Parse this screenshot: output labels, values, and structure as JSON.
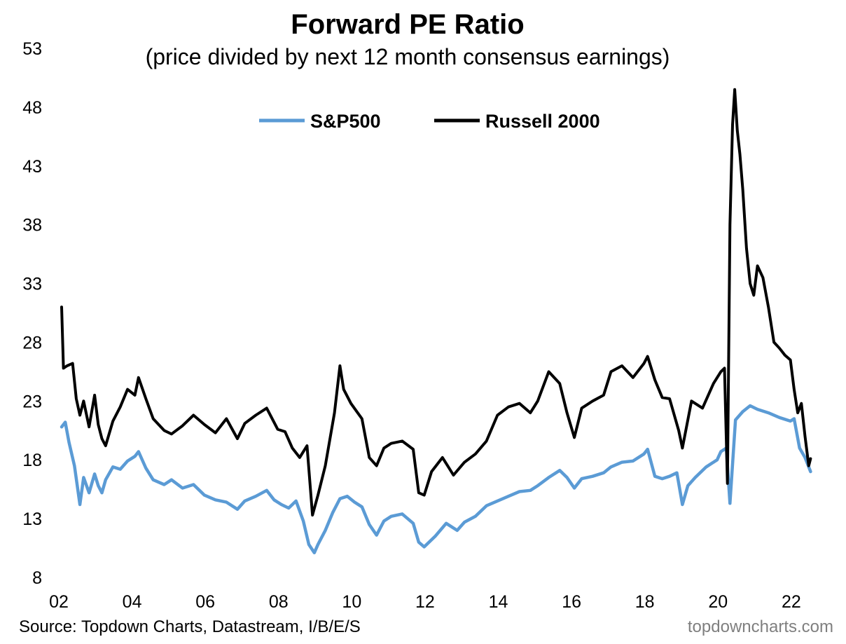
{
  "colors": {
    "sp500": "#5b9bd5",
    "russell": "#000000"
  },
  "source": "Source: Topdown Charts, Datastream, I/B/E/S",
  "credit": "topdowncharts.com",
  "chart_data": {
    "type": "line",
    "title": "Forward PE Ratio",
    "subtitle": "(price divided by next 12 month consensus earnings)",
    "xlabel": "",
    "ylabel": "",
    "xlim": [
      2002.0,
      2022.5
    ],
    "ylim": [
      8,
      53
    ],
    "x_ticks": [
      2002,
      2004,
      2006,
      2008,
      2010,
      2012,
      2014,
      2016,
      2018,
      2020,
      2022
    ],
    "x_tick_labels": [
      "02",
      "04",
      "06",
      "08",
      "10",
      "12",
      "14",
      "16",
      "18",
      "20",
      "22"
    ],
    "y_ticks": [
      8,
      13,
      18,
      23,
      28,
      33,
      38,
      43,
      48,
      53
    ],
    "y_tick_labels": [
      "8",
      "13",
      "18",
      "23",
      "28",
      "33",
      "38",
      "43",
      "48",
      "53"
    ],
    "grid": false,
    "legend": "top-center",
    "series": [
      {
        "name": "S&P500",
        "color": "#5b9bd5",
        "x": [
          2002.0,
          2002.1,
          2002.2,
          2002.35,
          2002.5,
          2002.6,
          2002.75,
          2002.9,
          2003.0,
          2003.1,
          2003.2,
          2003.4,
          2003.6,
          2003.8,
          2004.0,
          2004.1,
          2004.3,
          2004.5,
          2004.8,
          2005.0,
          2005.3,
          2005.6,
          2005.9,
          2006.2,
          2006.5,
          2006.8,
          2007.0,
          2007.3,
          2007.6,
          2007.8,
          2008.0,
          2008.2,
          2008.4,
          2008.6,
          2008.75,
          2008.9,
          2009.0,
          2009.2,
          2009.4,
          2009.6,
          2009.8,
          2010.0,
          2010.2,
          2010.4,
          2010.6,
          2010.8,
          2011.0,
          2011.3,
          2011.6,
          2011.75,
          2011.9,
          2012.2,
          2012.5,
          2012.8,
          2013.0,
          2013.3,
          2013.6,
          2013.9,
          2014.2,
          2014.5,
          2014.8,
          2015.0,
          2015.3,
          2015.6,
          2015.8,
          2016.0,
          2016.2,
          2016.5,
          2016.8,
          2017.0,
          2017.3,
          2017.6,
          2017.9,
          2018.0,
          2018.2,
          2018.4,
          2018.6,
          2018.8,
          2018.95,
          2019.1,
          2019.3,
          2019.6,
          2019.9,
          2020.0,
          2020.15,
          2020.25,
          2020.4,
          2020.6,
          2020.8,
          2021.0,
          2021.3,
          2021.6,
          2021.9,
          2022.0,
          2022.15,
          2022.3,
          2022.45
        ],
        "values": [
          20.8,
          21.2,
          19.5,
          17.5,
          14.2,
          16.5,
          15.2,
          16.8,
          15.8,
          15.2,
          16.3,
          17.4,
          17.2,
          17.9,
          18.3,
          18.7,
          17.3,
          16.3,
          15.9,
          16.3,
          15.6,
          15.9,
          15.0,
          14.6,
          14.4,
          13.8,
          14.5,
          14.9,
          15.4,
          14.6,
          14.2,
          13.9,
          14.5,
          12.8,
          10.8,
          10.1,
          10.8,
          12.0,
          13.5,
          14.7,
          14.9,
          14.4,
          14.0,
          12.5,
          11.6,
          12.8,
          13.2,
          13.4,
          12.6,
          11.0,
          10.6,
          11.5,
          12.6,
          12.0,
          12.7,
          13.2,
          14.1,
          14.5,
          14.9,
          15.3,
          15.4,
          15.8,
          16.5,
          17.1,
          16.5,
          15.6,
          16.4,
          16.6,
          16.9,
          17.4,
          17.8,
          17.9,
          18.5,
          18.9,
          16.6,
          16.4,
          16.6,
          16.9,
          14.2,
          15.8,
          16.5,
          17.4,
          18.0,
          18.7,
          19.0,
          14.3,
          21.4,
          22.1,
          22.6,
          22.3,
          22.0,
          21.6,
          21.3,
          21.5,
          19.0,
          18.2,
          17.0
        ]
      },
      {
        "name": "Russell 2000",
        "color": "#000000",
        "x": [
          2002.0,
          2002.05,
          2002.15,
          2002.3,
          2002.4,
          2002.5,
          2002.6,
          2002.75,
          2002.9,
          2003.0,
          2003.1,
          2003.2,
          2003.4,
          2003.6,
          2003.8,
          2004.0,
          2004.1,
          2004.3,
          2004.5,
          2004.8,
          2005.0,
          2005.3,
          2005.6,
          2005.9,
          2006.2,
          2006.5,
          2006.8,
          2007.0,
          2007.3,
          2007.6,
          2007.9,
          2008.1,
          2008.3,
          2008.5,
          2008.7,
          2008.85,
          2009.0,
          2009.2,
          2009.45,
          2009.6,
          2009.7,
          2009.9,
          2010.2,
          2010.4,
          2010.6,
          2010.8,
          2011.0,
          2011.3,
          2011.6,
          2011.75,
          2011.9,
          2012.1,
          2012.4,
          2012.7,
          2013.0,
          2013.3,
          2013.6,
          2013.9,
          2014.2,
          2014.5,
          2014.8,
          2015.0,
          2015.3,
          2015.6,
          2015.8,
          2016.0,
          2016.2,
          2016.5,
          2016.8,
          2017.0,
          2017.3,
          2017.6,
          2017.9,
          2018.0,
          2018.2,
          2018.4,
          2018.6,
          2018.85,
          2018.95,
          2019.2,
          2019.5,
          2019.8,
          2020.0,
          2020.1,
          2020.18,
          2020.25,
          2020.32,
          2020.38,
          2020.45,
          2020.52,
          2020.6,
          2020.7,
          2020.8,
          2020.9,
          2021.0,
          2021.15,
          2021.3,
          2021.45,
          2021.6,
          2021.75,
          2021.9,
          2022.0,
          2022.1,
          2022.2,
          2022.3,
          2022.4,
          2022.45
        ],
        "values": [
          31.0,
          25.8,
          26.0,
          26.2,
          23.2,
          21.8,
          23.0,
          20.8,
          23.5,
          21.0,
          19.8,
          19.2,
          21.3,
          22.5,
          24.0,
          23.5,
          25.0,
          23.2,
          21.5,
          20.5,
          20.2,
          20.9,
          21.8,
          21.0,
          20.3,
          21.5,
          19.8,
          21.1,
          21.8,
          22.4,
          20.6,
          20.4,
          19.0,
          18.2,
          19.2,
          13.3,
          15.0,
          17.5,
          22.0,
          26.0,
          24.0,
          22.8,
          21.5,
          18.2,
          17.5,
          19.0,
          19.4,
          19.6,
          18.9,
          15.2,
          15.0,
          17.0,
          18.2,
          16.7,
          17.8,
          18.5,
          19.6,
          21.8,
          22.5,
          22.8,
          22.0,
          23.0,
          25.5,
          24.5,
          22.0,
          19.9,
          22.4,
          23.0,
          23.5,
          25.5,
          26.0,
          25.0,
          26.2,
          26.8,
          24.8,
          23.3,
          23.2,
          20.5,
          19.0,
          23.0,
          22.4,
          24.5,
          25.5,
          25.8,
          16.0,
          38.0,
          46.5,
          49.5,
          46.0,
          44.0,
          41.0,
          36.0,
          33.0,
          32.0,
          34.5,
          33.5,
          31.0,
          28.0,
          27.5,
          26.9,
          26.5,
          24.0,
          22.0,
          22.8,
          20.0,
          17.5,
          18.1
        ]
      }
    ]
  }
}
